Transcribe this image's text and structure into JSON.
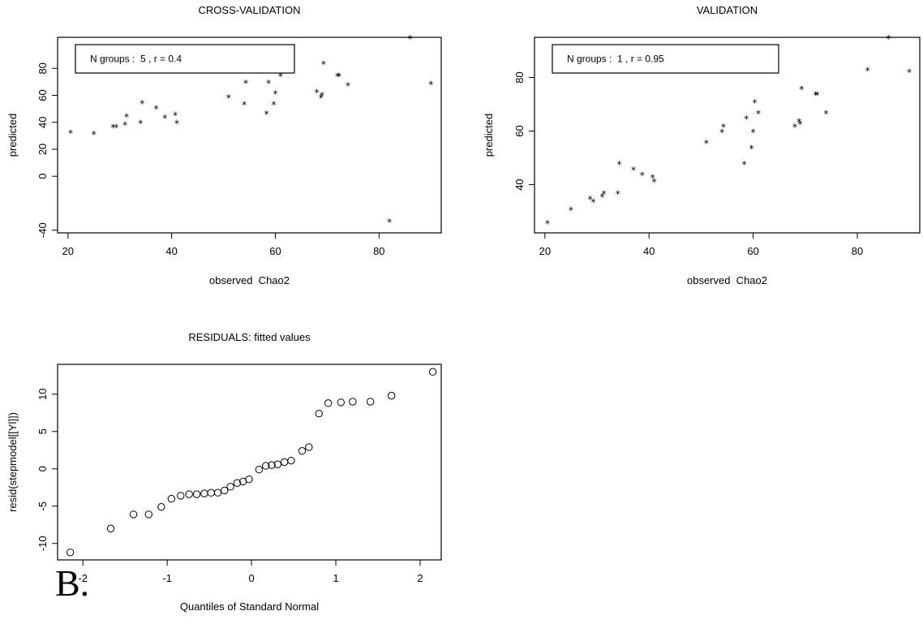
{
  "panel_letter": "B.",
  "chart_data": [
    {
      "id": "cv",
      "type": "scatter",
      "title": "CROSS-VALIDATION",
      "xlabel": "observed  Chao2",
      "ylabel": "predicted",
      "xlim": [
        18,
        92
      ],
      "ylim": [
        -42,
        103
      ],
      "xticks": [
        20,
        40,
        60,
        80
      ],
      "yticks": [
        -40,
        0,
        20,
        40,
        60,
        80
      ],
      "marker": "*",
      "legend": "N groups :  5 , r = 0.4",
      "legend_position": "top-left",
      "points": [
        [
          20.5,
          33
        ],
        [
          25,
          32
        ],
        [
          28.7,
          37
        ],
        [
          29.3,
          37
        ],
        [
          31,
          39
        ],
        [
          31.3,
          45
        ],
        [
          34,
          40
        ],
        [
          34.3,
          55
        ],
        [
          37,
          51
        ],
        [
          38.7,
          44
        ],
        [
          40.7,
          46
        ],
        [
          41,
          40
        ],
        [
          51,
          59
        ],
        [
          54,
          54
        ],
        [
          54.3,
          70
        ],
        [
          58.3,
          47
        ],
        [
          58.7,
          70
        ],
        [
          59.7,
          54
        ],
        [
          60,
          62
        ],
        [
          61,
          75
        ],
        [
          68,
          63
        ],
        [
          68.8,
          59
        ],
        [
          69,
          61
        ],
        [
          69.3,
          84
        ],
        [
          72,
          75
        ],
        [
          72.3,
          75
        ],
        [
          74,
          68
        ],
        [
          82,
          -33
        ],
        [
          86,
          103
        ],
        [
          90,
          69
        ]
      ]
    },
    {
      "id": "val",
      "type": "scatter",
      "title": "VALIDATION",
      "xlabel": "observed  Chao2",
      "ylabel": "predicted",
      "xlim": [
        18,
        92
      ],
      "ylim": [
        22,
        95
      ],
      "xticks": [
        20,
        40,
        60,
        80
      ],
      "yticks": [
        40,
        60,
        80
      ],
      "marker": "*",
      "legend": "N groups :  1 , r = 0.95",
      "legend_position": "top-left",
      "points": [
        [
          20.5,
          26
        ],
        [
          25,
          31
        ],
        [
          28.7,
          35
        ],
        [
          29.3,
          34
        ],
        [
          31,
          36
        ],
        [
          31.3,
          37
        ],
        [
          34,
          37
        ],
        [
          34.3,
          48
        ],
        [
          37,
          46
        ],
        [
          38.7,
          44
        ],
        [
          40.7,
          43
        ],
        [
          41,
          41.5
        ],
        [
          51,
          56
        ],
        [
          54,
          60
        ],
        [
          54.3,
          62
        ],
        [
          58.3,
          48
        ],
        [
          58.7,
          65
        ],
        [
          59.7,
          54
        ],
        [
          60,
          60
        ],
        [
          60.3,
          71
        ],
        [
          61,
          67
        ],
        [
          68,
          62
        ],
        [
          68.8,
          64
        ],
        [
          69,
          63
        ],
        [
          69.3,
          76
        ],
        [
          72,
          74
        ],
        [
          72.3,
          74
        ],
        [
          74,
          67
        ],
        [
          82,
          83
        ],
        [
          86,
          95
        ],
        [
          90,
          82.5
        ]
      ]
    },
    {
      "id": "resid",
      "type": "scatter",
      "title": "RESIDUALS: fitted values",
      "xlabel": "Quantiles of Standard Normal",
      "ylabel": "resid(stepmodel[[Yl]])",
      "xlim": [
        -2.3,
        2.25
      ],
      "ylim": [
        -12.2,
        14
      ],
      "xticks": [
        -2,
        -1,
        0,
        1,
        2
      ],
      "yticks": [
        -10,
        -5,
        0,
        5,
        10
      ],
      "marker": "o",
      "points": [
        [
          -2.15,
          -11.2
        ],
        [
          -1.67,
          -8.0
        ],
        [
          -1.4,
          -6.1
        ],
        [
          -1.22,
          -6.1
        ],
        [
          -1.07,
          -5.1
        ],
        [
          -0.95,
          -4.0
        ],
        [
          -0.84,
          -3.6
        ],
        [
          -0.74,
          -3.4
        ],
        [
          -0.65,
          -3.4
        ],
        [
          -0.56,
          -3.3
        ],
        [
          -0.48,
          -3.2
        ],
        [
          -0.4,
          -3.2
        ],
        [
          -0.32,
          -2.9
        ],
        [
          -0.25,
          -2.4
        ],
        [
          -0.17,
          -1.9
        ],
        [
          -0.1,
          -1.7
        ],
        [
          -0.03,
          -1.4
        ],
        [
          0.09,
          -0.1
        ],
        [
          0.17,
          0.4
        ],
        [
          0.24,
          0.5
        ],
        [
          0.31,
          0.6
        ],
        [
          0.39,
          0.9
        ],
        [
          0.47,
          1.1
        ],
        [
          0.6,
          2.4
        ],
        [
          0.68,
          2.9
        ],
        [
          0.8,
          7.4
        ],
        [
          0.91,
          8.8
        ],
        [
          1.06,
          8.9
        ],
        [
          1.2,
          9.0
        ],
        [
          1.41,
          9.0
        ],
        [
          1.66,
          9.8
        ],
        [
          2.15,
          13.0
        ]
      ]
    }
  ]
}
